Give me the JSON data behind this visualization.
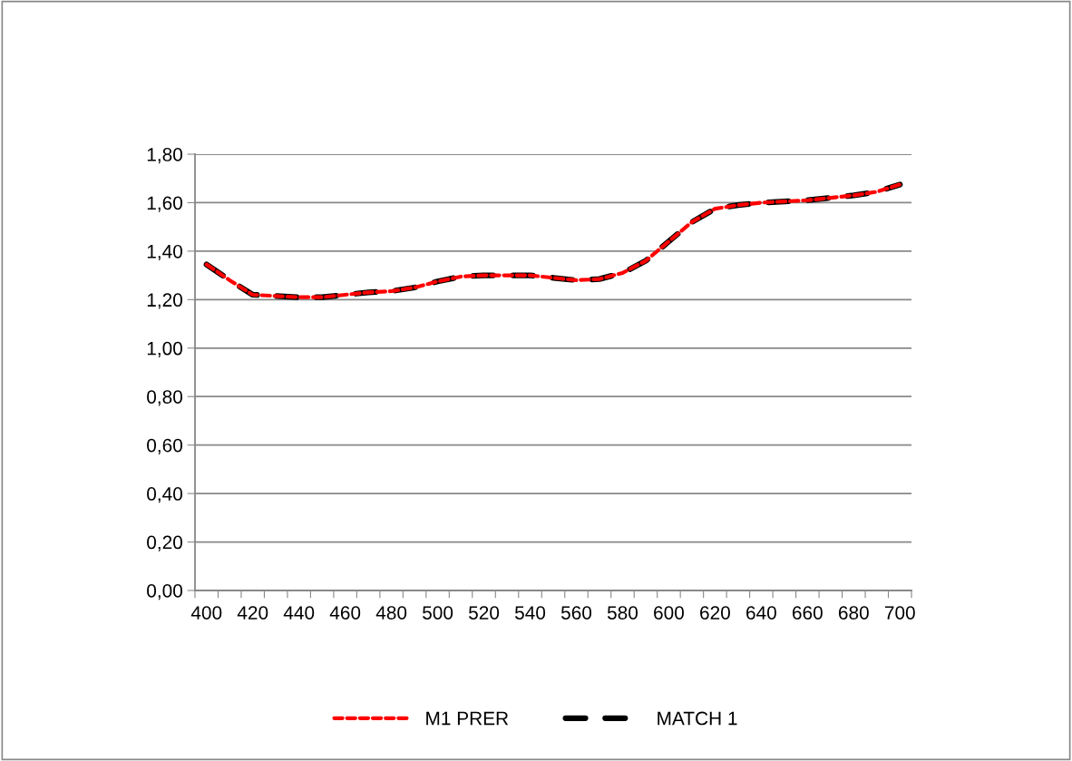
{
  "chart_data": {
    "type": "line",
    "categories": [
      "400",
      null,
      "420",
      null,
      "440",
      null,
      "460",
      null,
      "480",
      null,
      "500",
      null,
      "520",
      null,
      "540",
      null,
      "560",
      null,
      "580",
      null,
      "600",
      null,
      "620",
      null,
      "640",
      null,
      "660",
      null,
      "680",
      null,
      "700"
    ],
    "series": [
      {
        "name": "M1 PRER",
        "color": "#ff0000",
        "line_style": "dashed",
        "values": [
          1.345,
          1.28,
          1.22,
          1.215,
          1.21,
          1.21,
          1.22,
          1.23,
          1.235,
          1.25,
          1.275,
          1.295,
          1.3,
          1.3,
          1.3,
          1.29,
          1.28,
          1.285,
          1.31,
          1.36,
          1.44,
          1.52,
          1.575,
          1.59,
          1.6,
          1.605,
          1.61,
          1.62,
          1.63,
          1.645,
          1.675
        ]
      },
      {
        "name": "MATCH 1",
        "color": "#000000",
        "line_style": "dashed",
        "values": [
          1.345,
          1.28,
          1.22,
          1.215,
          1.21,
          1.21,
          1.22,
          1.23,
          1.235,
          1.25,
          1.275,
          1.295,
          1.3,
          1.3,
          1.3,
          1.29,
          1.28,
          1.285,
          1.31,
          1.36,
          1.44,
          1.52,
          1.575,
          1.59,
          1.6,
          1.605,
          1.61,
          1.62,
          1.63,
          1.645,
          1.675
        ]
      }
    ],
    "ylim": [
      0,
      1.8
    ],
    "yticks": [
      {
        "value": 0,
        "label": "0,00"
      },
      {
        "value": 0.2,
        "label": "0,20"
      },
      {
        "value": 0.4,
        "label": "0,40"
      },
      {
        "value": 0.6,
        "label": "0,60"
      },
      {
        "value": 0.8,
        "label": "0,80"
      },
      {
        "value": 1.0,
        "label": "1,00"
      },
      {
        "value": 1.2,
        "label": "1,20"
      },
      {
        "value": 1.4,
        "label": "1,40"
      },
      {
        "value": 1.6,
        "label": "1,60"
      },
      {
        "value": 1.8,
        "label": "1,80"
      }
    ],
    "grid": "y",
    "legend": "bottom",
    "marker": "none"
  }
}
